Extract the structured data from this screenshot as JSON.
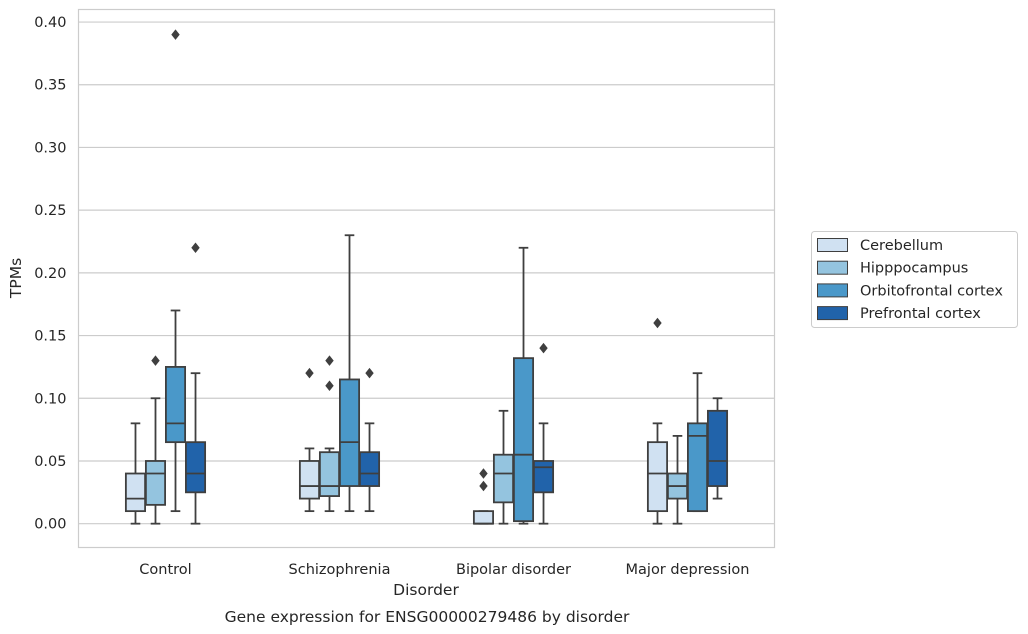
{
  "chart_data": {
    "type": "box",
    "caption": "Gene expression for ENSG00000279486 by disorder",
    "xlabel": "Disorder",
    "ylabel": "TPMs",
    "ylim": [
      -0.019,
      0.41
    ],
    "yticks": [
      "0.00",
      "0.05",
      "0.10",
      "0.15",
      "0.20",
      "0.25",
      "0.30",
      "0.35",
      "0.40"
    ],
    "grid": "horizontal",
    "legend_position": "right",
    "categories": [
      "Control",
      "Schizophrenia",
      "Bipolar disorder",
      "Major depression"
    ],
    "series": [
      {
        "name": "Cerebellum",
        "color": "#d0e1f2",
        "boxes": [
          {
            "whislo": 0.0,
            "q1": 0.01,
            "med": 0.02,
            "q3": 0.04,
            "whishi": 0.08,
            "fliers": []
          },
          {
            "whislo": 0.01,
            "q1": 0.02,
            "med": 0.03,
            "q3": 0.05,
            "whishi": 0.06,
            "fliers": [
              0.12
            ]
          },
          {
            "whislo": 0.0,
            "q1": 0.0,
            "med": 0.0,
            "q3": 0.01,
            "whishi": 0.01,
            "fliers": [
              0.03,
              0.04
            ]
          },
          {
            "whislo": 0.0,
            "q1": 0.01,
            "med": 0.04,
            "q3": 0.065,
            "whishi": 0.08,
            "fliers": [
              0.16
            ]
          }
        ]
      },
      {
        "name": "Hipppocampus",
        "color": "#94c4df",
        "boxes": [
          {
            "whislo": 0.0,
            "q1": 0.015,
            "med": 0.04,
            "q3": 0.05,
            "whishi": 0.1,
            "fliers": [
              0.13
            ]
          },
          {
            "whislo": 0.01,
            "q1": 0.022,
            "med": 0.03,
            "q3": 0.057,
            "whishi": 0.06,
            "fliers": [
              0.11,
              0.13
            ]
          },
          {
            "whislo": 0.0,
            "q1": 0.017,
            "med": 0.04,
            "q3": 0.055,
            "whishi": 0.09,
            "fliers": []
          },
          {
            "whislo": 0.0,
            "q1": 0.02,
            "med": 0.03,
            "q3": 0.04,
            "whishi": 0.07,
            "fliers": []
          }
        ]
      },
      {
        "name": "Orbitofrontal cortex",
        "color": "#4a98c9",
        "boxes": [
          {
            "whislo": 0.01,
            "q1": 0.065,
            "med": 0.08,
            "q3": 0.125,
            "whishi": 0.17,
            "fliers": [
              0.39
            ]
          },
          {
            "whislo": 0.01,
            "q1": 0.03,
            "med": 0.065,
            "q3": 0.115,
            "whishi": 0.23,
            "fliers": []
          },
          {
            "whislo": 0.0,
            "q1": 0.002,
            "med": 0.055,
            "q3": 0.132,
            "whishi": 0.22,
            "fliers": []
          },
          {
            "whislo": 0.01,
            "q1": 0.01,
            "med": 0.07,
            "q3": 0.08,
            "whishi": 0.12,
            "fliers": []
          }
        ]
      },
      {
        "name": "Prefrontal cortex",
        "color": "#2163aa",
        "boxes": [
          {
            "whislo": 0.0,
            "q1": 0.025,
            "med": 0.04,
            "q3": 0.065,
            "whishi": 0.12,
            "fliers": [
              0.22
            ]
          },
          {
            "whislo": 0.01,
            "q1": 0.03,
            "med": 0.04,
            "q3": 0.057,
            "whishi": 0.08,
            "fliers": [
              0.12
            ]
          },
          {
            "whislo": 0.0,
            "q1": 0.025,
            "med": 0.045,
            "q3": 0.05,
            "whishi": 0.08,
            "fliers": [
              0.14
            ]
          },
          {
            "whislo": 0.02,
            "q1": 0.03,
            "med": 0.05,
            "q3": 0.09,
            "whishi": 0.1,
            "fliers": []
          }
        ]
      }
    ]
  }
}
